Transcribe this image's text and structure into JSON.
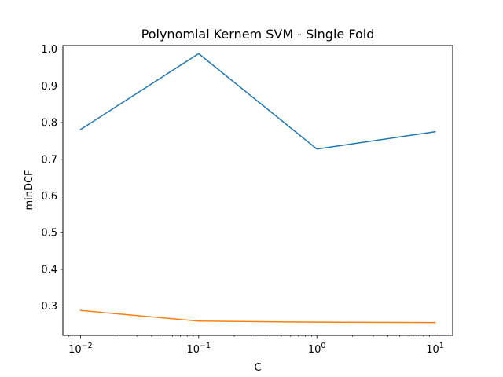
{
  "chart_data": {
    "type": "line",
    "title": "Polynomial Kernem SVM - Single Fold",
    "xlabel": "C",
    "ylabel": "minDCF",
    "x_scale": "log",
    "x": [
      0.01,
      0.1,
      1,
      10
    ],
    "x_tick_labels": [
      {
        "value": 0.01,
        "base": "10",
        "exp": "−2"
      },
      {
        "value": 0.1,
        "base": "10",
        "exp": "−1"
      },
      {
        "value": 1,
        "base": "10",
        "exp": "0"
      },
      {
        "value": 10,
        "base": "10",
        "exp": "1"
      }
    ],
    "xlim": [
      0.0071,
      14.1
    ],
    "ylim": [
      0.22,
      1.01
    ],
    "y_ticks": [
      0.3,
      0.4,
      0.5,
      0.6,
      0.7,
      0.8,
      0.9,
      1.0
    ],
    "y_tick_labels": [
      "0.3",
      "0.4",
      "0.5",
      "0.6",
      "0.7",
      "0.8",
      "0.9",
      "1.0"
    ],
    "grid": false,
    "series": [
      {
        "values": [
          0.781,
          0.988,
          0.728,
          0.775
        ],
        "color": "#1f77b4"
      },
      {
        "values": [
          0.288,
          0.259,
          0.256,
          0.255
        ],
        "color": "#ff7f0e"
      }
    ]
  }
}
